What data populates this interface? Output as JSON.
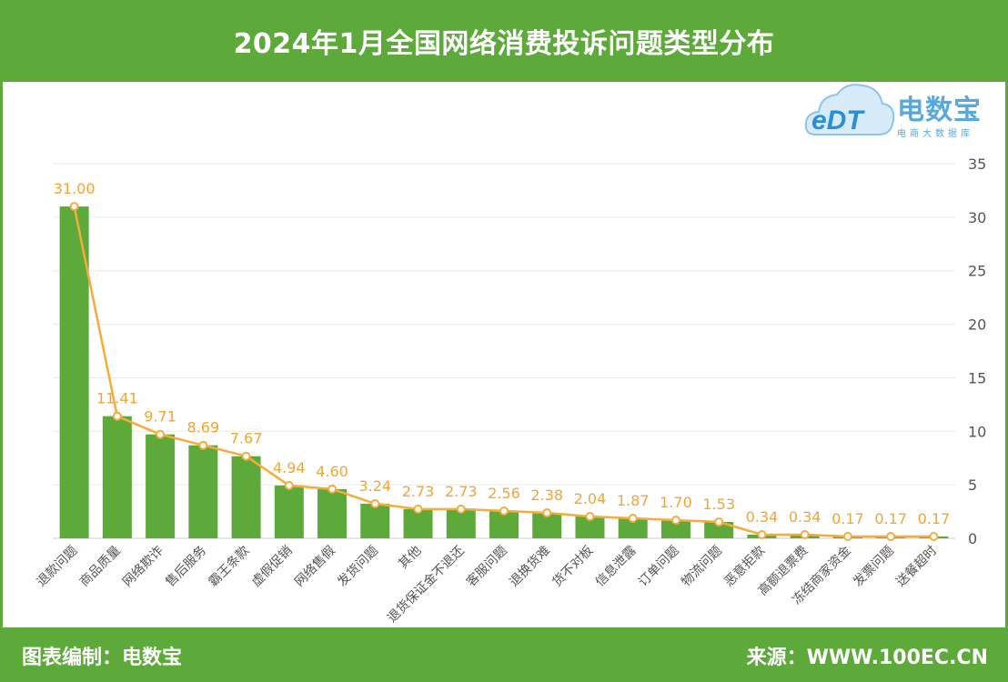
{
  "header": {
    "title": "2024年1月全国网络消费投诉问题类型分布"
  },
  "footer": {
    "left": "图表编制：电数宝",
    "right": "来源：WWW.100EC.CN"
  },
  "logo": {
    "mark": "eDT",
    "name": "电数宝",
    "tagline": "电商大数据库",
    "icon": "cloud-icon"
  },
  "colors": {
    "bar": "#5da93a",
    "line": "#f5ac3a",
    "header": "#5da93a",
    "grid": "#eaeaea"
  },
  "chart_data": {
    "type": "bar",
    "title": "2024年1月全国网络消费投诉问题类型分布",
    "categories": [
      "退款问题",
      "商品质量",
      "网络欺诈",
      "售后服务",
      "霸王条款",
      "虚假促销",
      "网络售假",
      "发货问题",
      "其他",
      "退货保证金不退还",
      "客服问题",
      "退换货难",
      "货不对板",
      "信息泄露",
      "订单问题",
      "物流问题",
      "恶意拒款",
      "高额退票费",
      "冻结商家资金",
      "发票问题",
      "送餐超时"
    ],
    "series": [
      {
        "type": "bar",
        "values": [
          31.0,
          11.41,
          9.71,
          8.69,
          7.67,
          4.94,
          4.6,
          3.24,
          2.73,
          2.73,
          2.56,
          2.38,
          2.04,
          1.87,
          1.7,
          1.53,
          0.34,
          0.34,
          0.17,
          0.17,
          0.17
        ]
      },
      {
        "type": "line",
        "values": [
          31.0,
          11.41,
          9.71,
          8.69,
          7.67,
          4.94,
          4.6,
          3.24,
          2.73,
          2.73,
          2.56,
          2.38,
          2.04,
          1.87,
          1.7,
          1.53,
          0.34,
          0.34,
          0.17,
          0.17,
          0.17
        ]
      }
    ],
    "data_labels": [
      "31.00",
      "11.41",
      "9.71",
      "8.69",
      "7.67",
      "4.94",
      "4.60",
      "3.24",
      "2.73",
      "2.73",
      "2.56",
      "2.38",
      "2.04",
      "1.87",
      "1.70",
      "1.53",
      "0.34",
      "0.34",
      "0.17",
      "0.17",
      "0.17"
    ],
    "y_axis": {
      "position": "right",
      "ylim": [
        0,
        35
      ],
      "ticks": [
        "0",
        "5",
        "10",
        "15",
        "20",
        "25",
        "30",
        "35"
      ]
    },
    "grid": true,
    "legend": "none"
  }
}
